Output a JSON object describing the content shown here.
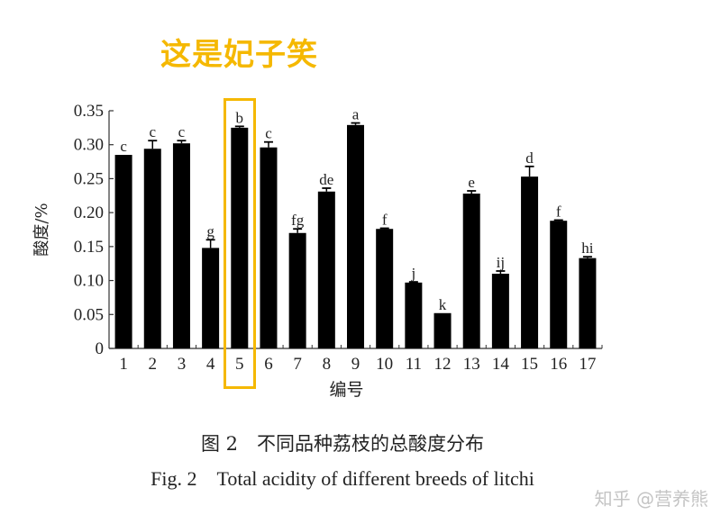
{
  "annotation": {
    "text": "这是妃子笑",
    "color": "#f5b800"
  },
  "caption": {
    "cn": "图 2　不同品种荔枝的总酸度分布",
    "en": "Fig. 2　Total acidity of different breeds of litchi"
  },
  "watermark": "知乎 @营养熊",
  "highlight": {
    "category": "5",
    "color": "#f5b800"
  },
  "chart_data": {
    "type": "bar",
    "title": "Total acidity of different breeds of litchi",
    "xlabel": "编号",
    "ylabel": "酸度/%",
    "categories": [
      "1",
      "2",
      "3",
      "4",
      "5",
      "6",
      "7",
      "8",
      "9",
      "10",
      "11",
      "12",
      "13",
      "14",
      "15",
      "16",
      "17"
    ],
    "values": [
      0.285,
      0.294,
      0.302,
      0.148,
      0.325,
      0.296,
      0.17,
      0.231,
      0.329,
      0.176,
      0.097,
      0.052,
      0.228,
      0.11,
      0.253,
      0.188,
      0.133
    ],
    "errors": [
      0.0,
      0.012,
      0.004,
      0.012,
      0.002,
      0.008,
      0.006,
      0.005,
      0.003,
      0.001,
      0.001,
      0.0,
      0.004,
      0.004,
      0.015,
      0.001,
      0.002
    ],
    "significance_labels": [
      "c",
      "c",
      "c",
      "g",
      "b",
      "c",
      "fg",
      "de",
      "a",
      "f",
      "j",
      "k",
      "e",
      "ij",
      "d",
      "f",
      "hi"
    ],
    "yticks": [
      0,
      0.05,
      0.1,
      0.15,
      0.2,
      0.25,
      0.3,
      0.35
    ],
    "ytick_labels": [
      "0",
      "0.05",
      "0.10",
      "0.15",
      "0.20",
      "0.25",
      "0.30",
      "0.35"
    ],
    "ylim": [
      0,
      0.35
    ],
    "grid": false,
    "legend": null,
    "bar_color": "#000000"
  }
}
